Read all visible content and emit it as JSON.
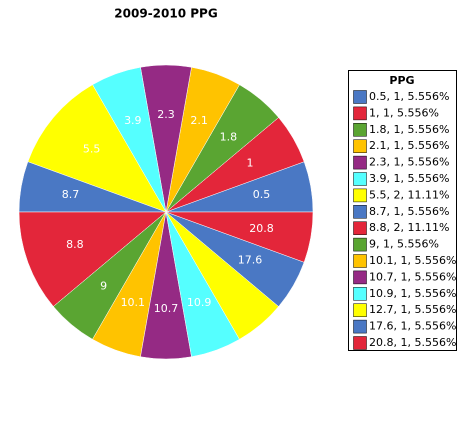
{
  "chart_data": {
    "type": "pie",
    "title": "2009-2010 PPG",
    "categories": [
      "0.5",
      "1",
      "1.8",
      "2.1",
      "2.3",
      "3.9",
      "5.5",
      "8.7",
      "8.8",
      "9",
      "10.1",
      "10.7",
      "10.9",
      null,
      "17.6",
      "20.8"
    ],
    "values": [
      1,
      1,
      1,
      1,
      1,
      1,
      2,
      1,
      2,
      1,
      1,
      1,
      1,
      1,
      1,
      1
    ],
    "colors": [
      "#4a78c4",
      "#e3263a",
      "#5aa532",
      "#ffc300",
      "#952a84",
      "#55ffff",
      "#ffff00",
      "#4a78c4",
      "#e3263a",
      "#5aa532",
      "#ffc300",
      "#952a84",
      "#55ffff",
      "#ffff00",
      "#4a78c4",
      "#e3263a"
    ],
    "legend_title": "PPG",
    "legend_labels": [
      "0.5, 1, 5.556%",
      "1, 1, 5.556%",
      "1.8, 1, 5.556%",
      "2.1, 1, 5.556%",
      "2.3, 1, 5.556%",
      "3.9, 1, 5.556%",
      "5.5, 2, 11.11%",
      "8.7, 1, 5.556%",
      "8.8, 2, 11.11%",
      "9, 1, 5.556%",
      "10.1, 1, 5.556%",
      "10.7, 1, 5.556%",
      "10.9, 1, 5.556%",
      "12.7, 1, 5.556%",
      "17.6, 1, 5.556%",
      "20.8, 1, 5.556%"
    ],
    "legend_position": "right"
  }
}
